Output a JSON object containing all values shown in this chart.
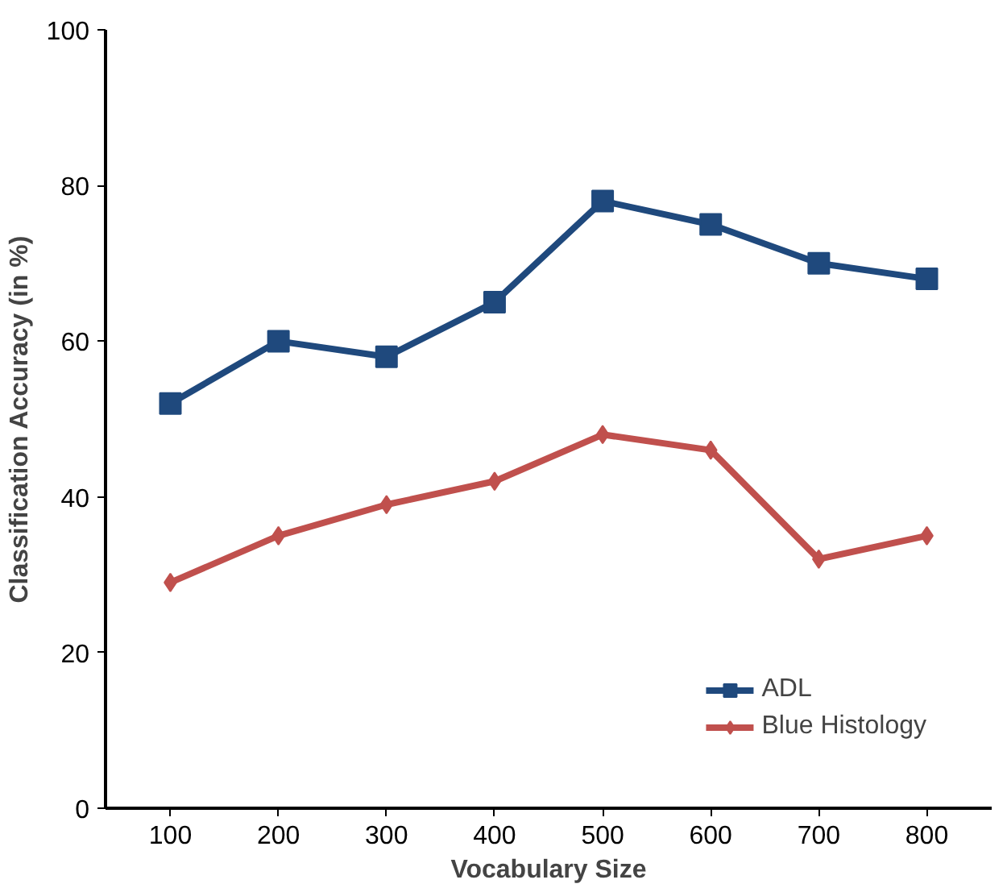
{
  "chart_data": {
    "type": "line",
    "xlabel": "Vocabulary Size",
    "ylabel": "Classification Accuracy (in %)",
    "categories": [
      "100",
      "200",
      "300",
      "400",
      "500",
      "600",
      "700",
      "800"
    ],
    "ylim": [
      0,
      100
    ],
    "yticks": [
      0,
      20,
      40,
      60,
      80,
      100
    ],
    "grid": false,
    "legend": "bottom right",
    "series": [
      {
        "name": "ADL",
        "color": "#1f497d",
        "marker": "square",
        "values": [
          52,
          60,
          58,
          65,
          78,
          75,
          70,
          68
        ]
      },
      {
        "name": "Blue Histology",
        "color": "#c0504d",
        "marker": "diamond",
        "values": [
          29,
          35,
          39,
          42,
          48,
          46,
          32,
          35
        ]
      }
    ]
  }
}
